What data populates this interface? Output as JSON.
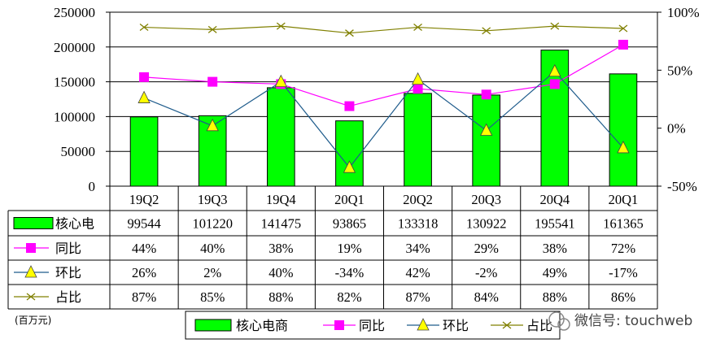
{
  "chart_data": {
    "type": "bar",
    "categories": [
      "19Q2",
      "19Q3",
      "19Q4",
      "20Q1",
      "20Q2",
      "20Q3",
      "20Q4",
      "20Q1"
    ],
    "ylim": [
      0,
      250000
    ],
    "y_ticks": [
      "250000",
      "200000",
      "150000",
      "100000",
      "50000",
      "0"
    ],
    "y2lim": [
      -50,
      100
    ],
    "y2_ticks": [
      "100%",
      "50%",
      "0%",
      "-50%"
    ],
    "unit": "(百万元)",
    "grid": true,
    "legend_position": "bottom",
    "series": [
      {
        "name": "核心电商",
        "table_label": "核心电",
        "kind": "bar",
        "axis": "left",
        "color": "#00ff00",
        "values": [
          99544,
          101220,
          141475,
          93865,
          133318,
          130922,
          195541,
          161365
        ],
        "labels": [
          "99544",
          "101220",
          "141475",
          "93865",
          "133318",
          "130922",
          "195541",
          "161365"
        ]
      },
      {
        "name": "同比",
        "table_label": "同比",
        "kind": "line",
        "axis": "right",
        "color": "#ff00ff",
        "marker": "square",
        "values": [
          44,
          40,
          38,
          19,
          34,
          29,
          38,
          72
        ],
        "labels": [
          "44%",
          "40%",
          "38%",
          "19%",
          "34%",
          "29%",
          "38%",
          "72%"
        ]
      },
      {
        "name": "环比",
        "table_label": "环比",
        "kind": "line",
        "axis": "right",
        "color": "#ffff00",
        "line_color": "#1f5c8c",
        "marker": "triangle",
        "values": [
          26,
          2,
          40,
          -34,
          42,
          -2,
          49,
          -17
        ],
        "labels": [
          "26%",
          "2%",
          "40%",
          "-34%",
          "42%",
          "-2%",
          "49%",
          "-17%"
        ]
      },
      {
        "name": "占比",
        "table_label": "占比",
        "kind": "line",
        "axis": "right",
        "color": "#808000",
        "marker": "x",
        "values": [
          87,
          85,
          88,
          82,
          87,
          84,
          88,
          86
        ],
        "labels": [
          "87%",
          "85%",
          "88%",
          "82%",
          "87%",
          "84%",
          "88%",
          "86%"
        ]
      }
    ]
  },
  "watermark": "微信号: touchweb"
}
